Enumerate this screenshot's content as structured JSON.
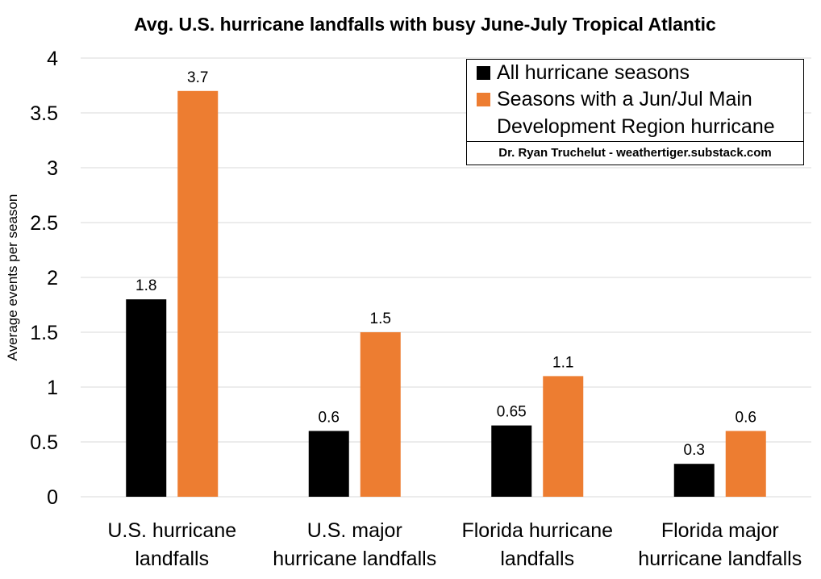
{
  "chart_data": {
    "type": "bar",
    "title": "Avg. U.S. hurricane landfalls with busy June-July Tropical Atlantic",
    "xlabel": "",
    "ylabel": "Average events per season",
    "ylim": [
      0,
      4
    ],
    "yticks": [
      "0",
      "0.5",
      "1",
      "1.5",
      "2",
      "2.5",
      "3",
      "3.5",
      "4"
    ],
    "grid": true,
    "legend_position": "top-right",
    "categories": [
      [
        "U.S. hurricane",
        "landfalls"
      ],
      [
        "U.S. major",
        "hurricane landfalls"
      ],
      [
        "Florida hurricane",
        "landfalls"
      ],
      [
        "Florida major",
        "hurricane landfalls"
      ]
    ],
    "series": [
      {
        "name": "All hurricane seasons",
        "color": "#000000",
        "values": [
          1.8,
          0.6,
          0.65,
          0.3
        ],
        "labels": [
          "1.8",
          "0.6",
          "0.65",
          "0.3"
        ]
      },
      {
        "name": "Seasons with a Jun/Jul Main Development Region hurricane",
        "name_lines": [
          "Seasons with a Jun/Jul Main",
          "Development Region hurricane"
        ],
        "color": "#ED7D31",
        "values": [
          3.7,
          1.5,
          1.1,
          0.6
        ],
        "labels": [
          "3.7",
          "1.5",
          "1.1",
          "0.6"
        ]
      }
    ],
    "credit": "Dr. Ryan Truchelut - weathertiger.substack.com"
  }
}
